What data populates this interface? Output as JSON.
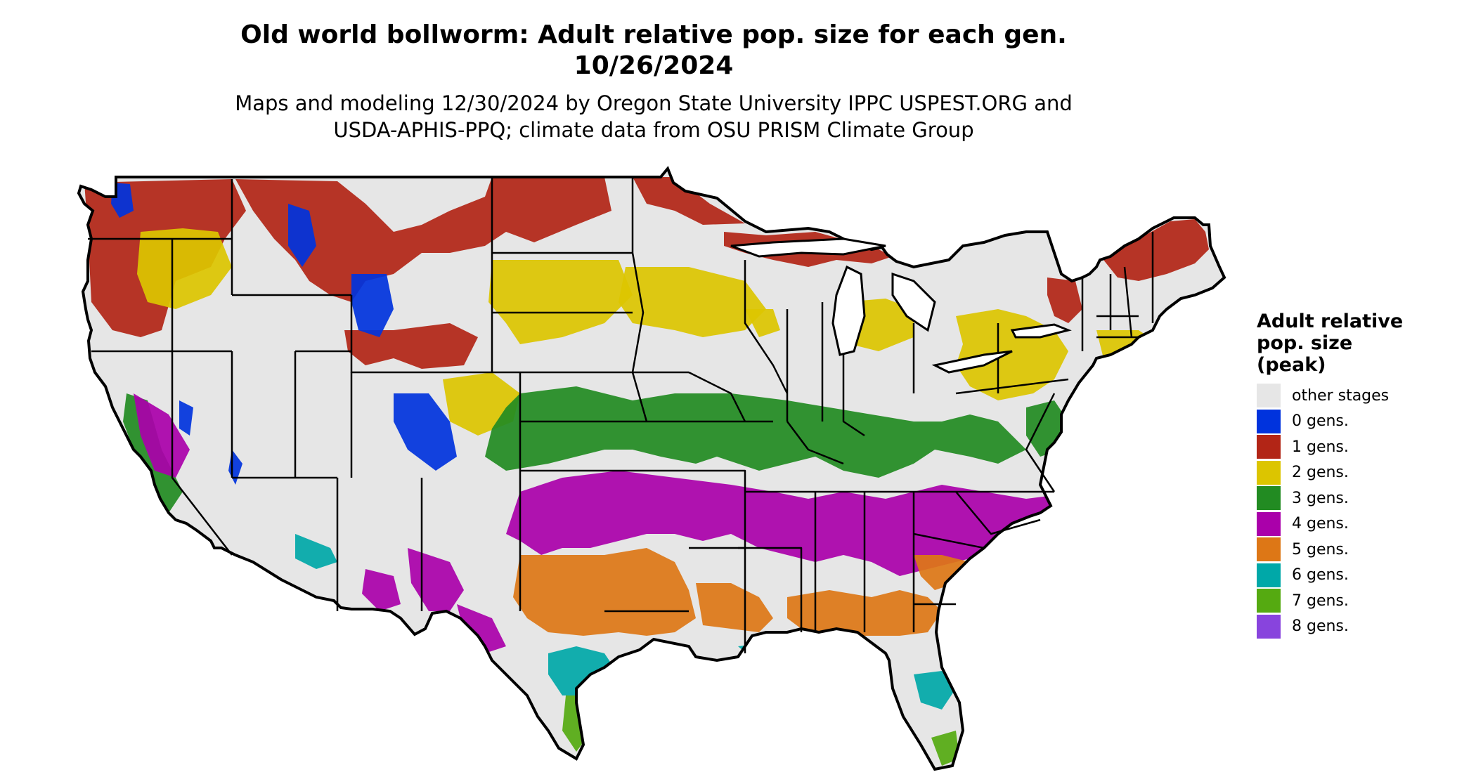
{
  "title": {
    "line1": "Old world bollworm: Adult relative pop. size for each gen.",
    "line2": "10/26/2024"
  },
  "subtitle": {
    "line1": "Maps and modeling 12/30/2024 by Oregon State University IPPC USPEST.ORG and",
    "line2": "USDA-APHIS-PPQ; climate data from OSU PRISM Climate Group"
  },
  "legend": {
    "title_lines": [
      "Adult relative",
      "pop. size",
      "(peak)"
    ],
    "items": [
      {
        "label": "other stages",
        "color": "#e6e6e6"
      },
      {
        "label": "0 gens.",
        "color": "#0033dd"
      },
      {
        "label": "1 gens.",
        "color": "#b22516"
      },
      {
        "label": "2 gens.",
        "color": "#dcc500"
      },
      {
        "label": "3 gens.",
        "color": "#228b22"
      },
      {
        "label": "4 gens.",
        "color": "#aa00aa"
      },
      {
        "label": "5 gens.",
        "color": "#dd7716"
      },
      {
        "label": "6 gens.",
        "color": "#00a8a8"
      },
      {
        "label": "7 gens.",
        "color": "#55aa11"
      },
      {
        "label": "8 gens.",
        "color": "#8844dd"
      }
    ]
  },
  "map": {
    "background_color": "#e6e6e6",
    "border_color": "#000000"
  }
}
